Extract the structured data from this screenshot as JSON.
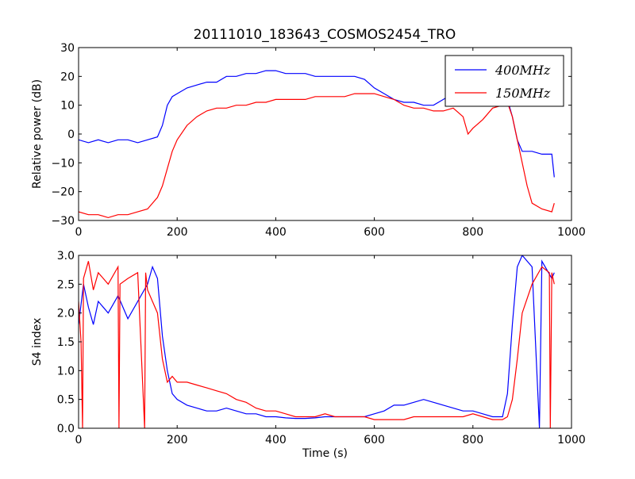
{
  "figure": {
    "title": "20111010_183643_COSMOS2454_TRO"
  },
  "chart_data": [
    {
      "type": "line",
      "ylabel": "Relative power (dB)",
      "xlabel": "",
      "xlim": [
        0,
        1000
      ],
      "ylim": [
        -30,
        30
      ],
      "x_ticks": [
        0,
        200,
        400,
        600,
        800,
        1000
      ],
      "y_ticks": [
        -30,
        -20,
        -10,
        0,
        10,
        20,
        30
      ],
      "y_tick_labels": [
        "−30",
        "−20",
        "−10",
        "0",
        "10",
        "20",
        "30"
      ],
      "grid": false,
      "legend": {
        "position": "top-right",
        "entries": [
          {
            "label": "400MHz",
            "color": "#0000ff"
          },
          {
            "label": "150MHz",
            "color": "#ff0000"
          }
        ]
      },
      "series": [
        {
          "name": "400MHz",
          "color": "#0000ff",
          "x": [
            0,
            20,
            40,
            60,
            80,
            100,
            120,
            140,
            160,
            170,
            180,
            190,
            200,
            220,
            240,
            260,
            280,
            300,
            320,
            340,
            360,
            380,
            400,
            420,
            440,
            460,
            480,
            500,
            520,
            540,
            560,
            580,
            600,
            620,
            640,
            660,
            680,
            700,
            720,
            740,
            760,
            780,
            800,
            820,
            840,
            860,
            870,
            880,
            890,
            900,
            920,
            940,
            960,
            965
          ],
          "y": [
            -2,
            -3,
            -2,
            -3,
            -2,
            -2,
            -3,
            -2,
            -1,
            3,
            10,
            13,
            14,
            16,
            17,
            18,
            18,
            20,
            20,
            21,
            21,
            22,
            22,
            21,
            21,
            21,
            20,
            20,
            20,
            20,
            20,
            19,
            16,
            14,
            12,
            11,
            11,
            10,
            10,
            12,
            14,
            13,
            10,
            11,
            12,
            13,
            12,
            6,
            -2,
            -6,
            -6,
            -7,
            -7,
            -15
          ]
        },
        {
          "name": "150MHz",
          "color": "#ff0000",
          "x": [
            0,
            20,
            40,
            60,
            80,
            100,
            120,
            140,
            160,
            170,
            180,
            190,
            200,
            220,
            240,
            260,
            280,
            300,
            320,
            340,
            360,
            380,
            400,
            420,
            440,
            460,
            480,
            500,
            520,
            540,
            560,
            580,
            600,
            620,
            640,
            660,
            680,
            700,
            720,
            740,
            760,
            780,
            790,
            800,
            820,
            840,
            860,
            870,
            880,
            890,
            900,
            910,
            920,
            940,
            960,
            965
          ],
          "y": [
            -27,
            -28,
            -28,
            -29,
            -28,
            -28,
            -27,
            -26,
            -22,
            -18,
            -12,
            -6,
            -2,
            3,
            6,
            8,
            9,
            9,
            10,
            10,
            11,
            11,
            12,
            12,
            12,
            12,
            13,
            13,
            13,
            13,
            14,
            14,
            14,
            13,
            12,
            10,
            9,
            9,
            8,
            8,
            9,
            6,
            0,
            2,
            5,
            9,
            10,
            11,
            6,
            -2,
            -10,
            -18,
            -24,
            -26,
            -27,
            -24
          ]
        }
      ]
    },
    {
      "type": "line",
      "ylabel": "S4 index",
      "xlabel": "Time (s)",
      "xlim": [
        0,
        1000
      ],
      "ylim": [
        0,
        3
      ],
      "x_ticks": [
        0,
        200,
        400,
        600,
        800,
        1000
      ],
      "y_ticks": [
        0.0,
        0.5,
        1.0,
        1.5,
        2.0,
        2.5,
        3.0
      ],
      "y_tick_labels": [
        "0.0",
        "0.5",
        "1.0",
        "1.5",
        "2.0",
        "2.5",
        "3.0"
      ],
      "grid": false,
      "series": [
        {
          "name": "400MHz",
          "color": "#0000ff",
          "x": [
            0,
            10,
            20,
            30,
            40,
            60,
            80,
            100,
            120,
            140,
            150,
            160,
            170,
            180,
            190,
            200,
            220,
            240,
            260,
            280,
            300,
            320,
            340,
            360,
            380,
            400,
            420,
            440,
            460,
            480,
            500,
            520,
            540,
            560,
            580,
            600,
            620,
            640,
            660,
            680,
            700,
            720,
            740,
            760,
            780,
            800,
            820,
            840,
            860,
            870,
            880,
            890,
            900,
            920,
            935,
            940,
            960,
            965
          ],
          "y": [
            1.8,
            2.5,
            2.1,
            1.8,
            2.2,
            2.0,
            2.3,
            1.9,
            2.2,
            2.5,
            2.8,
            2.6,
            1.6,
            1.0,
            0.6,
            0.5,
            0.4,
            0.35,
            0.3,
            0.3,
            0.35,
            0.3,
            0.25,
            0.25,
            0.2,
            0.2,
            0.18,
            0.17,
            0.17,
            0.18,
            0.2,
            0.2,
            0.2,
            0.2,
            0.2,
            0.25,
            0.3,
            0.4,
            0.4,
            0.45,
            0.5,
            0.45,
            0.4,
            0.35,
            0.3,
            0.3,
            0.25,
            0.2,
            0.2,
            0.6,
            1.8,
            2.8,
            3.0,
            2.8,
            0.0,
            2.9,
            2.6,
            2.7
          ]
        },
        {
          "name": "150MHz",
          "color": "#ff0000",
          "x": [
            0,
            5,
            8,
            10,
            20,
            30,
            40,
            60,
            80,
            82,
            84,
            100,
            120,
            134,
            136,
            140,
            150,
            160,
            170,
            180,
            190,
            200,
            220,
            240,
            260,
            280,
            300,
            320,
            340,
            360,
            380,
            400,
            420,
            440,
            460,
            480,
            500,
            520,
            540,
            560,
            580,
            600,
            620,
            640,
            660,
            680,
            700,
            720,
            740,
            760,
            780,
            800,
            820,
            840,
            860,
            870,
            880,
            890,
            900,
            920,
            940,
            955,
            957,
            960,
            965
          ],
          "y": [
            2.2,
            1.5,
            0.0,
            2.6,
            2.9,
            2.4,
            2.7,
            2.5,
            2.8,
            0.0,
            2.5,
            2.6,
            2.7,
            0.0,
            2.7,
            2.4,
            2.2,
            2.0,
            1.2,
            0.8,
            0.9,
            0.8,
            0.8,
            0.75,
            0.7,
            0.65,
            0.6,
            0.5,
            0.45,
            0.35,
            0.3,
            0.3,
            0.25,
            0.2,
            0.2,
            0.2,
            0.25,
            0.2,
            0.2,
            0.2,
            0.2,
            0.15,
            0.15,
            0.15,
            0.15,
            0.2,
            0.2,
            0.2,
            0.2,
            0.2,
            0.2,
            0.25,
            0.2,
            0.15,
            0.15,
            0.2,
            0.5,
            1.2,
            2.0,
            2.5,
            2.8,
            2.7,
            0.0,
            2.7,
            2.5
          ]
        }
      ]
    }
  ]
}
